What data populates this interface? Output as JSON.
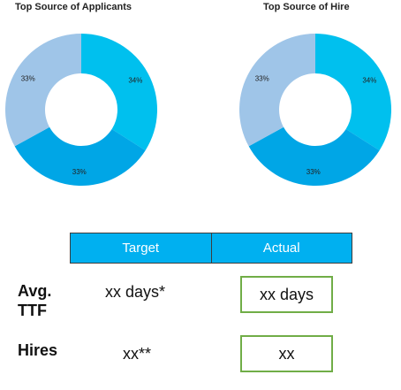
{
  "chart_data": [
    {
      "type": "pie",
      "title": "Top Source of Applicants",
      "categories": [
        "",
        "",
        ""
      ],
      "values": [
        34,
        33,
        33
      ],
      "labels": [
        "34%",
        "33%",
        "33%"
      ],
      "colors": [
        "#00c0ee",
        "#00a6e6",
        "#9fc5e8"
      ],
      "donut": true
    },
    {
      "type": "pie",
      "title": "Top Source of Hire",
      "categories": [
        "",
        "",
        ""
      ],
      "values": [
        34,
        33,
        33
      ],
      "labels": [
        "34%",
        "33%",
        "33%"
      ],
      "colors": [
        "#00c0ee",
        "#00a6e6",
        "#9fc5e8"
      ],
      "donut": true
    }
  ],
  "table": {
    "headers": [
      "Target",
      "Actual"
    ],
    "header_color": "#00b0f0",
    "box_border_color": "#70ad47",
    "rows": [
      {
        "label": "Avg. TTF",
        "target": "xx days*",
        "actual": "xx days"
      },
      {
        "label": "Hires",
        "target": "xx**",
        "actual": "xx"
      }
    ]
  }
}
